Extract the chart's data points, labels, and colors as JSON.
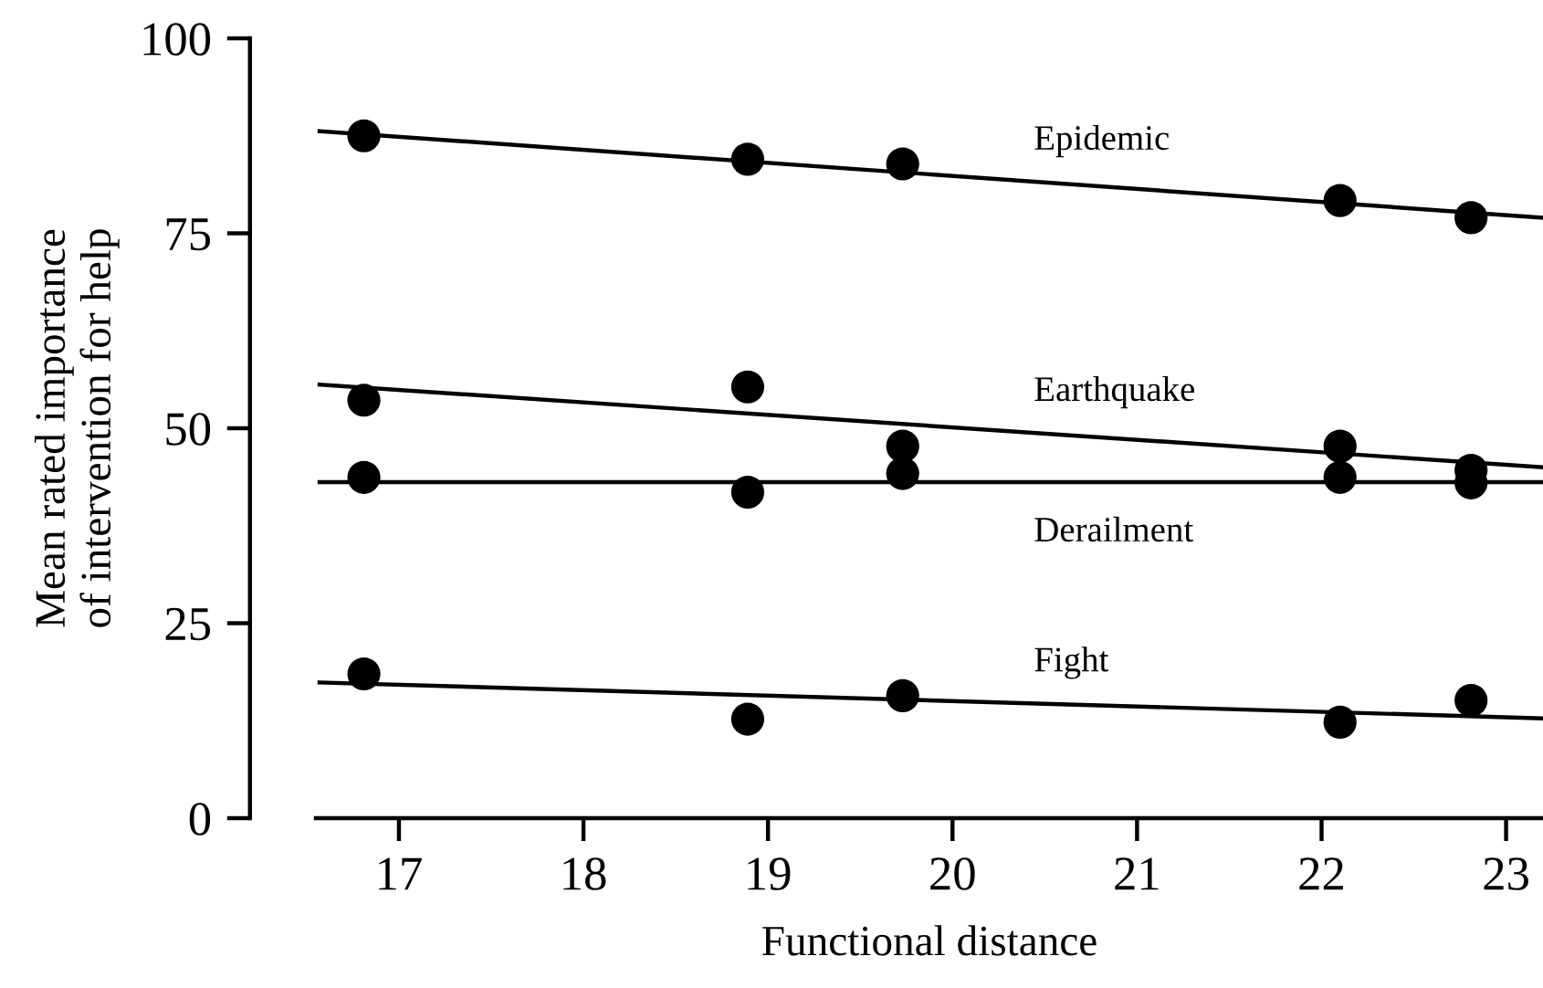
{
  "chart_data": {
    "type": "scatter",
    "xlabel": "Functional distance",
    "ylabel": "Mean rated importance\nof intervention for help",
    "xlim": [
      16.55,
      23.2
    ],
    "xticks": [
      17,
      18,
      19,
      20,
      21,
      22,
      23
    ],
    "ylim": [
      0,
      100
    ],
    "yticks": [
      0,
      25,
      50,
      75,
      100
    ],
    "grid": false,
    "legend": false,
    "marker": "circle",
    "series": [
      {
        "color": "#000000",
        "x": [
          16.81,
          18.89,
          19.73,
          22.1,
          22.81
        ],
        "values": [
          87.5,
          84.5,
          83.9,
          79.2,
          77.0
        ]
      },
      {
        "type": "line",
        "name": "Epidemic",
        "color": "#000000",
        "marker": "none",
        "x": [
          16.57,
          23.2
        ],
        "values": [
          88.1,
          77.0
        ]
      },
      {
        "color": "#000000",
        "x": [
          16.81,
          18.89,
          19.73,
          22.1,
          22.81
        ],
        "values": [
          53.6,
          55.3,
          47.7,
          47.7,
          44.6
        ]
      },
      {
        "type": "line",
        "name": "Earthquake",
        "color": "#000000",
        "marker": "none",
        "x": [
          16.57,
          23.2
        ],
        "values": [
          55.6,
          45.0
        ]
      },
      {
        "color": "#000000",
        "x": [
          16.81,
          18.89,
          19.73,
          22.1,
          22.81
        ],
        "values": [
          43.7,
          41.8,
          44.2,
          43.7,
          43.0
        ]
      },
      {
        "type": "line",
        "name": "Derailment",
        "color": "#000000",
        "marker": "none",
        "x": [
          16.57,
          23.2
        ],
        "values": [
          43.1,
          43.1
        ]
      },
      {
        "color": "#000000",
        "x": [
          16.81,
          18.89,
          19.73,
          22.1,
          22.81
        ],
        "values": [
          18.5,
          12.7,
          15.7,
          12.3,
          15.1
        ]
      },
      {
        "type": "line",
        "name": "Fight",
        "color": "#000000",
        "marker": "none",
        "x": [
          16.57,
          23.2
        ],
        "values": [
          17.4,
          12.8
        ]
      }
    ]
  }
}
